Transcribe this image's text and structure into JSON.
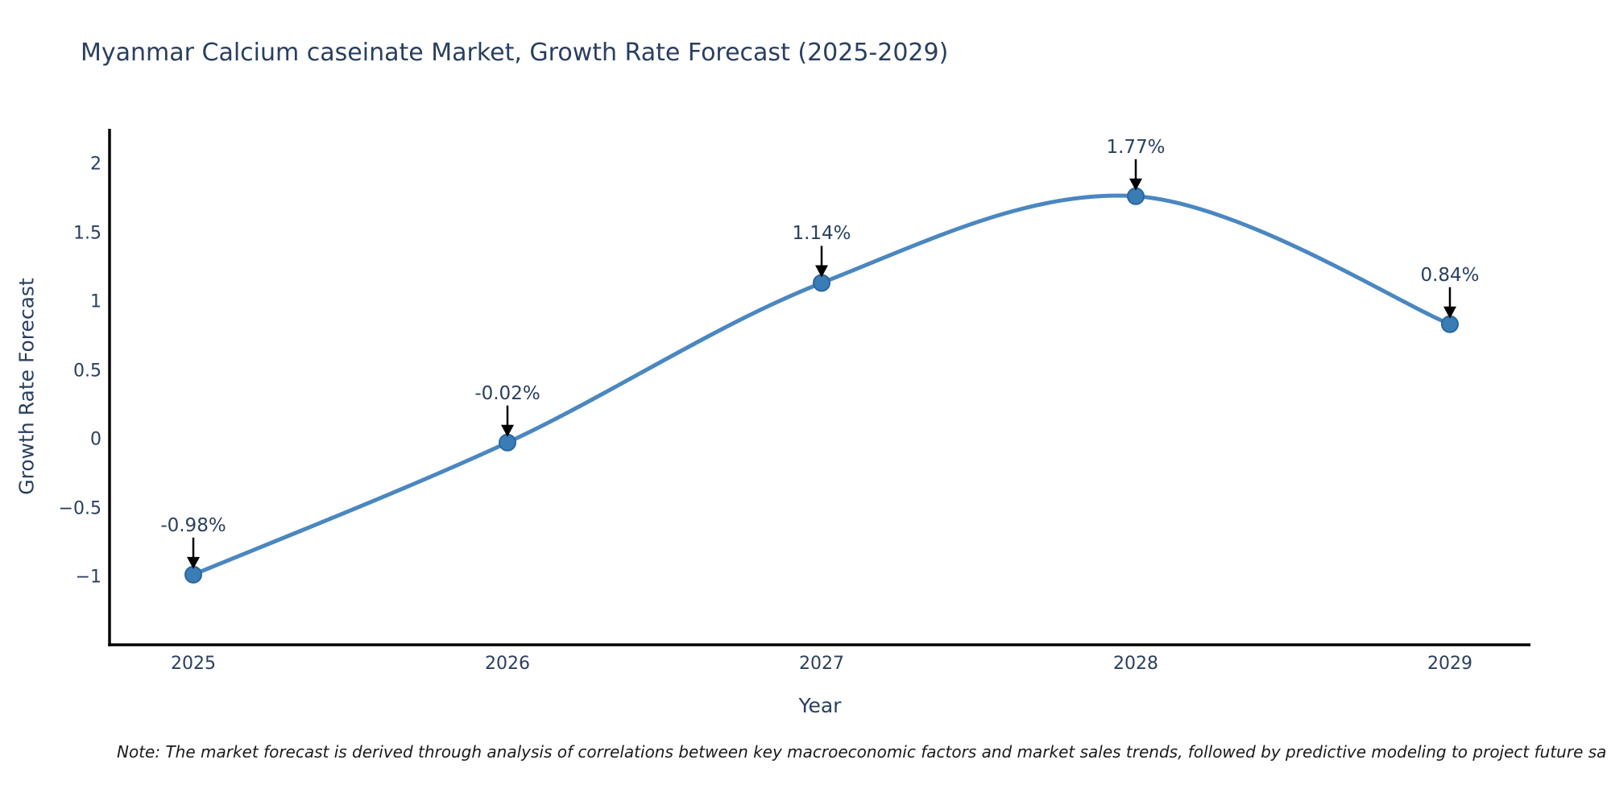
{
  "page": {
    "background": "#ffffff"
  },
  "chart_data": {
    "type": "line",
    "title": "Myanmar Calcium caseinate Market, Growth Rate Forecast (2025-2029)",
    "xlabel": "Year",
    "ylabel": "Growth Rate Forecast",
    "categories": [
      "2025",
      "2026",
      "2027",
      "2028",
      "2029"
    ],
    "values": [
      -0.98,
      -0.02,
      1.14,
      1.77,
      0.84
    ],
    "point_labels": [
      "-0.98%",
      "-0.02%",
      "1.14%",
      "1.77%",
      "0.84%"
    ],
    "ytick_values": [
      2,
      1.5,
      1,
      0.5,
      0,
      -0.5,
      -1
    ],
    "ytick_labels": [
      "2",
      "1.5",
      "1",
      "0.5",
      "0",
      "−0.5",
      "−1"
    ],
    "ylim": [
      -1.49,
      2.26
    ],
    "line_shape": "spline",
    "grid": false,
    "legend": "none",
    "note": "Note: The market forecast is derived through analysis of correlations between key macroeconomic factors and market sales trends, followed by predictive modeling to project future sa",
    "colors": {
      "line": "#4a87c0",
      "marker_fill": "#3a7cb5",
      "marker_edge": "#29679e",
      "axis_line": "#000000",
      "tick_text": "#2a3f5f",
      "title_text": "#2a3f5f",
      "annotation_arrow": "#000000",
      "note_text": "#1a1a1a"
    }
  }
}
